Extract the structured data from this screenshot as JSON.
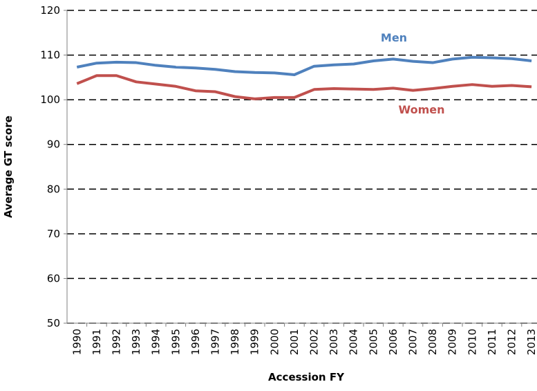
{
  "chart_data": {
    "type": "line",
    "x_label": "Accession FY",
    "y_label": "Average GT score",
    "categories": [
      "1990",
      "1991",
      "1992",
      "1993",
      "1994",
      "1995",
      "1996",
      "1997",
      "1998",
      "1999",
      "2000",
      "2001",
      "2002",
      "2003",
      "2004",
      "2005",
      "2006",
      "2007",
      "2008",
      "2009",
      "2010",
      "2011",
      "2012",
      "2013"
    ],
    "series": [
      {
        "name": "Men",
        "color": "#4f81bd",
        "values": [
          107.3,
          108.2,
          108.4,
          108.3,
          107.7,
          107.3,
          107.1,
          106.8,
          106.3,
          106.1,
          106.0,
          105.6,
          107.5,
          107.8,
          108.0,
          108.7,
          109.1,
          108.6,
          108.3,
          109.1,
          109.5,
          109.4,
          109.2,
          108.7
        ]
      },
      {
        "name": "Women",
        "color": "#c0504d",
        "values": [
          103.6,
          105.4,
          105.4,
          104.0,
          103.5,
          103.0,
          102.0,
          101.8,
          100.7,
          100.2,
          100.5,
          100.5,
          102.3,
          102.5,
          102.4,
          102.3,
          102.6,
          102.1,
          102.5,
          103.0,
          103.4,
          103.0,
          103.2,
          102.9
        ]
      }
    ],
    "ylim": [
      50,
      120
    ],
    "yticks": [
      50,
      60,
      70,
      80,
      90,
      100,
      110,
      120
    ],
    "grid": true
  }
}
